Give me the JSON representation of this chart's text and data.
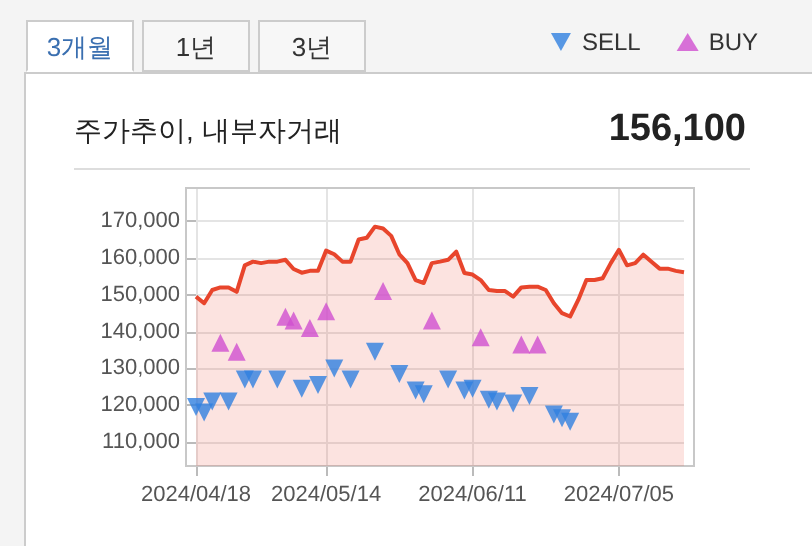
{
  "chart_data": {
    "type": "area",
    "title": "주가추이, 내부자거래",
    "subtitle": "156,100",
    "annotations": [
      "3개월",
      "1년",
      "3년"
    ],
    "categories": [
      "2024/04/18",
      null,
      null,
      null,
      null,
      null,
      null,
      null,
      null,
      null,
      null,
      null,
      null,
      null,
      null,
      null,
      "2024/05/14",
      null,
      null,
      null,
      null,
      null,
      null,
      null,
      null,
      null,
      null,
      null,
      null,
      null,
      null,
      null,
      null,
      null,
      "2024/06/11",
      null,
      null,
      null,
      null,
      null,
      null,
      null,
      null,
      null,
      null,
      null,
      null,
      null,
      null,
      null,
      null,
      null,
      "2024/07/05",
      null,
      null,
      null,
      null,
      null,
      null,
      null,
      null
    ],
    "ylim": [
      103500,
      179000
    ],
    "yticks": [
      {
        "value": 110000,
        "label": "110,000"
      },
      {
        "value": 120000,
        "label": "120,000"
      },
      {
        "value": 130000,
        "label": "130,000"
      },
      {
        "value": 140000,
        "label": "140,000"
      },
      {
        "value": 150000,
        "label": "150,000"
      },
      {
        "value": 160000,
        "label": "160,000"
      },
      {
        "value": 170000,
        "label": "170,000"
      }
    ],
    "grid": true,
    "legend": "top right",
    "series": [
      {
        "type": "area",
        "color": "#e8452c",
        "marker": "none",
        "values": [
          149500,
          147700,
          151300,
          152000,
          152000,
          150800,
          158000,
          159000,
          158600,
          159000,
          159000,
          159500,
          157000,
          156000,
          156500,
          156500,
          162000,
          161000,
          159000,
          159000,
          165000,
          165500,
          168500,
          168000,
          166000,
          161000,
          158600,
          154000,
          153200,
          158600,
          159000,
          159500,
          161700,
          155900,
          155500,
          154000,
          151300,
          151000,
          151000,
          149500,
          152000,
          152200,
          152200,
          151300,
          147700,
          145000,
          144100,
          148600,
          154000,
          154000,
          154500,
          158600,
          162200,
          158000,
          158600,
          160900,
          159000,
          157100,
          157100,
          156500,
          156100
        ]
      },
      {
        "type": "scatter",
        "name": "SELL",
        "color": "#2f7fe0",
        "marker": "triangle-down",
        "values": [
          119500,
          118000,
          121000,
          null,
          121000,
          null,
          127000,
          127000,
          null,
          null,
          127000,
          null,
          null,
          124500,
          null,
          125500,
          null,
          130000,
          null,
          127000,
          null,
          null,
          134500,
          null,
          null,
          128500,
          null,
          124000,
          123000,
          null,
          null,
          127000,
          null,
          124000,
          124500,
          null,
          121500,
          121000,
          null,
          120500,
          null,
          122500,
          null,
          null,
          117500,
          116500,
          115500,
          null,
          null,
          null,
          null,
          null,
          null,
          null,
          null,
          null,
          null,
          null,
          null,
          null,
          null
        ]
      },
      {
        "type": "scatter",
        "name": "BUY",
        "color": "#d04fd0",
        "marker": "triangle",
        "values": [
          null,
          null,
          null,
          137000,
          null,
          134500,
          null,
          null,
          null,
          null,
          null,
          144000,
          143000,
          null,
          141000,
          null,
          145500,
          null,
          null,
          null,
          null,
          null,
          null,
          151000,
          null,
          null,
          null,
          null,
          null,
          143000,
          null,
          null,
          null,
          null,
          null,
          138500,
          null,
          null,
          null,
          null,
          136500,
          null,
          136500,
          null,
          null,
          null,
          null,
          null,
          null,
          null,
          null,
          null,
          null,
          null,
          null,
          null,
          null,
          null,
          null,
          null,
          null
        ]
      }
    ]
  }
}
